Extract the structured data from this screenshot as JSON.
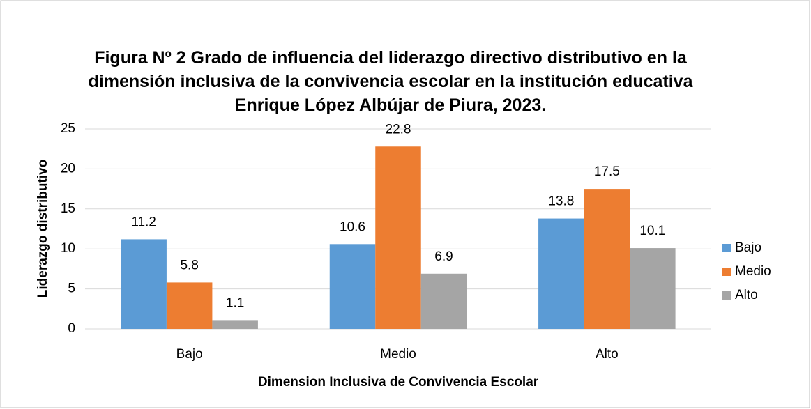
{
  "chart_data": {
    "type": "bar",
    "title": "Figura Nº 2 Grado de influencia del liderazgo directivo distributivo en la dimensión inclusiva de la convivencia escolar en la institución educativa Enrique López Albújar de Piura, 2023.",
    "x_label": "Dimension  Inclusiva de Convivencia Escolar",
    "y_label": "Liderazgo distributivo",
    "categories": [
      "Bajo",
      "Medio",
      "Alto"
    ],
    "series": [
      {
        "name": "Bajo",
        "color": "#5b9bd5",
        "values": [
          11.2,
          10.6,
          13.8
        ]
      },
      {
        "name": "Medio",
        "color": "#ed7d31",
        "values": [
          5.8,
          22.8,
          17.5
        ]
      },
      {
        "name": "Alto",
        "color": "#a5a5a5",
        "values": [
          1.1,
          6.9,
          10.1
        ]
      }
    ],
    "ylim": [
      0,
      25
    ],
    "yticks": [
      0,
      5,
      10,
      15,
      20,
      25
    ],
    "grid": true,
    "legend": "right"
  }
}
